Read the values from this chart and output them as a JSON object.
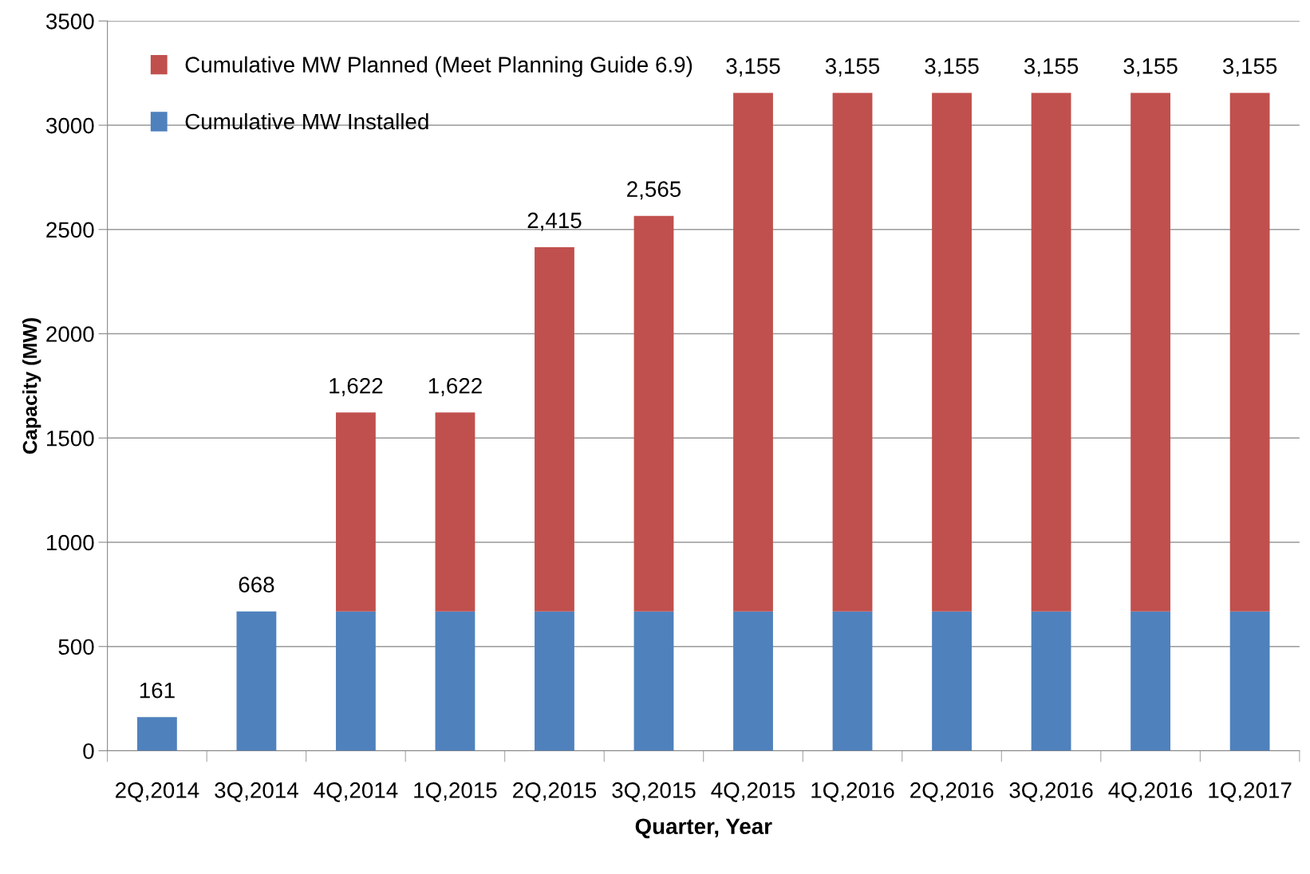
{
  "chart_data": {
    "type": "bar",
    "stacked": true,
    "xlabel": "Quarter, Year",
    "ylabel": "Capacity (MW)",
    "categories": [
      "2Q,2014",
      "3Q,2014",
      "4Q,2014",
      "1Q,2015",
      "2Q,2015",
      "3Q,2015",
      "4Q,2015",
      "1Q,2016",
      "2Q,2016",
      "3Q,2016",
      "4Q,2016",
      "1Q,2017"
    ],
    "series": [
      {
        "name": "Cumulative MW Installed",
        "color": "#4f81bd",
        "values": [
          161,
          668,
          668,
          668,
          668,
          668,
          668,
          668,
          668,
          668,
          668,
          668
        ]
      },
      {
        "name": "Cumulative MW Planned (Meet Planning Guide 6.9)",
        "color": "#c0504d",
        "values": [
          null,
          null,
          954,
          954,
          1747,
          1897,
          2487,
          2487,
          2487,
          2487,
          2487,
          2487
        ]
      }
    ],
    "totals": [
      "161",
      "668",
      "1,622",
      "1,622",
      "2,415",
      "2,565",
      "3,155",
      "3,155",
      "3,155",
      "3,155",
      "3,155",
      "3,155"
    ],
    "ylim": [
      0,
      3500
    ],
    "yticks": [
      0,
      500,
      1000,
      1500,
      2000,
      2500,
      3000,
      3500
    ],
    "grid": "y",
    "legend": "top left"
  }
}
